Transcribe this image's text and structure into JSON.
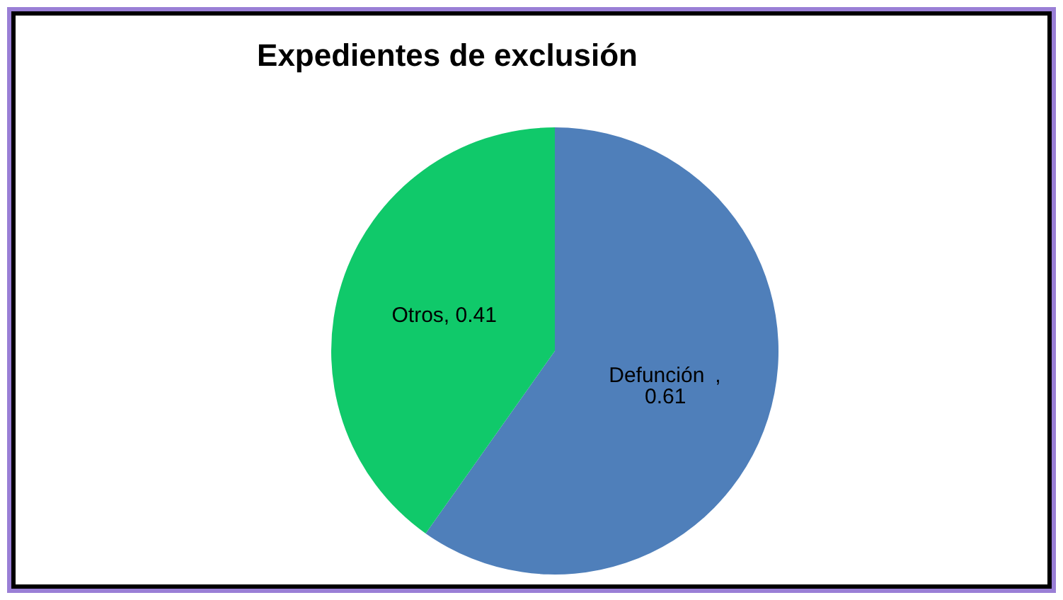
{
  "chart_data": {
    "type": "pie",
    "title": "Expedientes de exclusión",
    "categories": [
      "Defunción ",
      "Otros"
    ],
    "values": [
      0.61,
      0.41
    ],
    "value_labels": [
      ", 0.61",
      ", 0.41"
    ],
    "colors": [
      "#4f7fba",
      "#10c96a"
    ],
    "data_labels": true,
    "legend": false
  }
}
